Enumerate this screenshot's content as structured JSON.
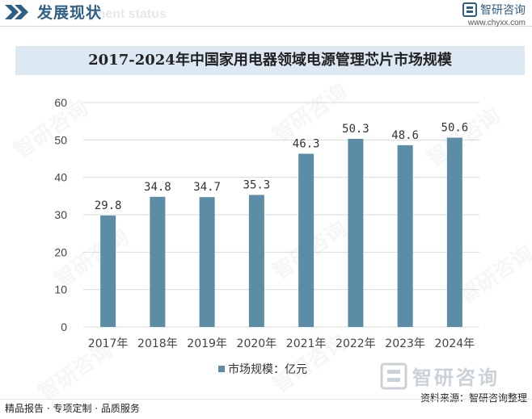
{
  "header": {
    "title": "发展现状",
    "subtitle": "ment status",
    "brand_name": "智研咨询",
    "brand_url": "www.chyxx.com"
  },
  "watermark_text": "智研咨询",
  "footer": {
    "left": "精品报告 · 专项定制 · 品质服务",
    "source": "资料来源：智研咨询整理"
  },
  "colors": {
    "bar": "#5b8ea6",
    "header": "#2f5f86",
    "title_band": "#dce9f3",
    "grid": "#d9d9d9"
  },
  "chart_data": {
    "type": "bar",
    "title": "2017-2024年中国家用电器领域电源管理芯片市场规模",
    "categories": [
      "2017年",
      "2018年",
      "2019年",
      "2020年",
      "2021年",
      "2022年",
      "2023年",
      "2024年"
    ],
    "series": [
      {
        "name": "市场规模：亿元",
        "values": [
          29.8,
          34.8,
          34.7,
          35.3,
          46.3,
          50.3,
          48.6,
          50.6
        ]
      }
    ],
    "ylim": [
      0,
      60
    ],
    "yticks": [
      0,
      10,
      20,
      30,
      40,
      50,
      60
    ],
    "xlabel": "",
    "ylabel": "",
    "grid": true,
    "legend": "bottom"
  }
}
